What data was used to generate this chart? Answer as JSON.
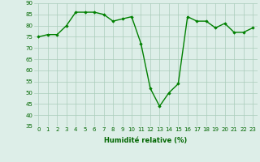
{
  "x": [
    0,
    1,
    2,
    3,
    4,
    5,
    6,
    7,
    8,
    9,
    10,
    11,
    12,
    13,
    14,
    15,
    16,
    17,
    18,
    19,
    20,
    21,
    22,
    23
  ],
  "y": [
    75,
    76,
    76,
    80,
    86,
    86,
    86,
    85,
    82,
    83,
    84,
    72,
    52,
    44,
    50,
    54,
    84,
    82,
    82,
    79,
    81,
    77,
    77,
    79
  ],
  "xlabel": "Humidité relative (%)",
  "ylim": [
    35,
    90
  ],
  "yticks": [
    35,
    40,
    45,
    50,
    55,
    60,
    65,
    70,
    75,
    80,
    85,
    90
  ],
  "xticks": [
    0,
    1,
    2,
    3,
    4,
    5,
    6,
    7,
    8,
    9,
    10,
    11,
    12,
    13,
    14,
    15,
    16,
    17,
    18,
    19,
    20,
    21,
    22,
    23
  ],
  "line_color": "#008000",
  "marker_color": "#008000",
  "bg_color": "#ddeee8",
  "grid_color": "#aaccbb",
  "marker": "D",
  "markersize": 1.8,
  "linewidth": 1.0,
  "tick_fontsize": 5.0,
  "xlabel_fontsize": 6.0
}
